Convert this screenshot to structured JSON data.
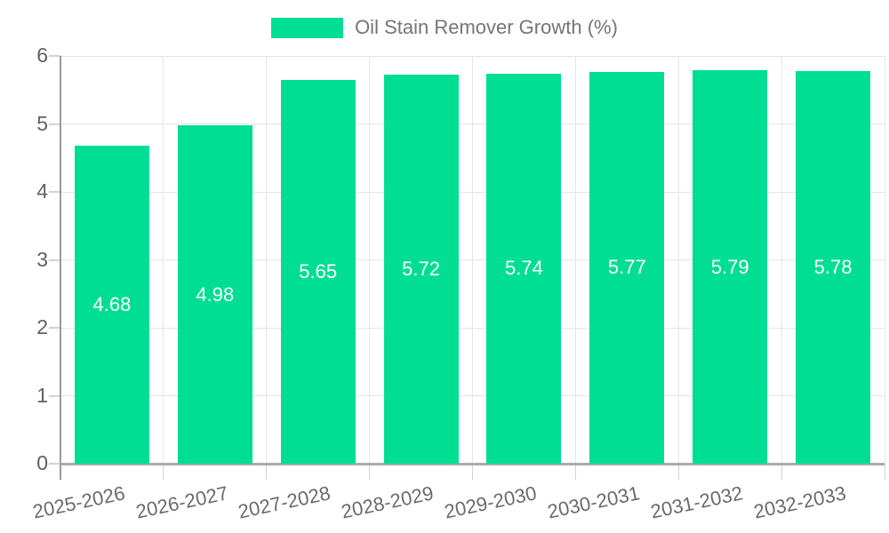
{
  "legend": {
    "label": "Oil Stain Remover Growth (%)"
  },
  "chart_data": {
    "type": "bar",
    "title": "",
    "xlabel": "",
    "ylabel": "",
    "categories": [
      "2025-2026",
      "2026-2027",
      "2027-2028",
      "2028-2029",
      "2029-2030",
      "2030-2031",
      "2031-2032",
      "2032-2033"
    ],
    "series": [
      {
        "name": "Oil Stain Remover Growth (%)",
        "values": [
          4.68,
          4.98,
          5.65,
          5.72,
          5.74,
          5.77,
          5.79,
          5.78
        ],
        "value_labels": [
          "4.68",
          "4.98",
          "5.65",
          "5.72",
          "5.74",
          "5.77",
          "5.79",
          "5.78"
        ]
      }
    ],
    "ylim": [
      0,
      6
    ],
    "yticks": [
      0,
      1,
      2,
      3,
      4,
      5,
      6
    ],
    "grid": true,
    "legend_position": "top-center",
    "colors": {
      "bar": "#00DE94",
      "value_label": "#ffffff",
      "axis_line": "#9a9a9a",
      "gridline": "#e4e4e4",
      "tick_label": "#616161",
      "legend_text": "#757575",
      "background": "#ffffff"
    }
  }
}
